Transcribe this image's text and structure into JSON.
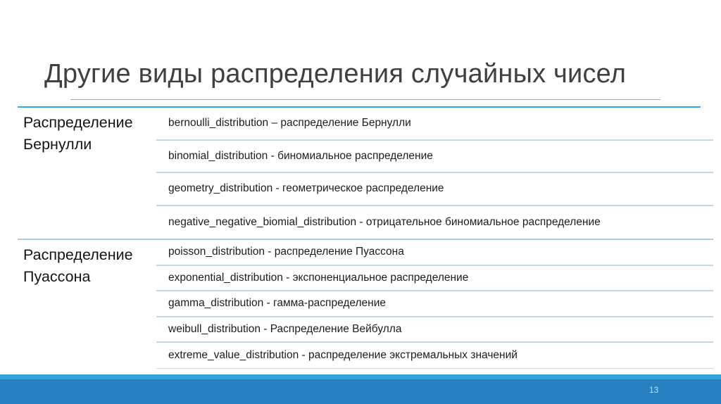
{
  "slide": {
    "title": "Другие виды распределения случайных чисел",
    "page_number": "13"
  },
  "table": {
    "groups": [
      {
        "label": "Распределение Бернулли",
        "rows": [
          "bernoulli_distribution – распределение Бернулли",
          "binomial_distribution - биномиальное распределение",
          "geometry_distribution - геометрическое распределение",
          "negative_negative_biomial_distribution - отрицательное биномиальное распределение"
        ]
      },
      {
        "label": "Распределение Пуассона",
        "rows": [
          "poisson_distribution - распределение Пуассона",
          "exponential_distribution - экспоненциальное распределение",
          "gamma_distribution - гамма-распределение",
          "weibull_distribution - Распределение Вейбулла",
          "extreme_value_distribution - распределение экстремальных значений"
        ]
      }
    ]
  },
  "colors": {
    "accent_cyan": "#29ABE2",
    "footer_strip": "#35A3DB",
    "footer_bar": "#2880C0",
    "row_separator": "#C2D9E5",
    "group_divider": "#A9CEDD",
    "title_text": "#3F4040",
    "body_text": "#1C1C1C"
  }
}
